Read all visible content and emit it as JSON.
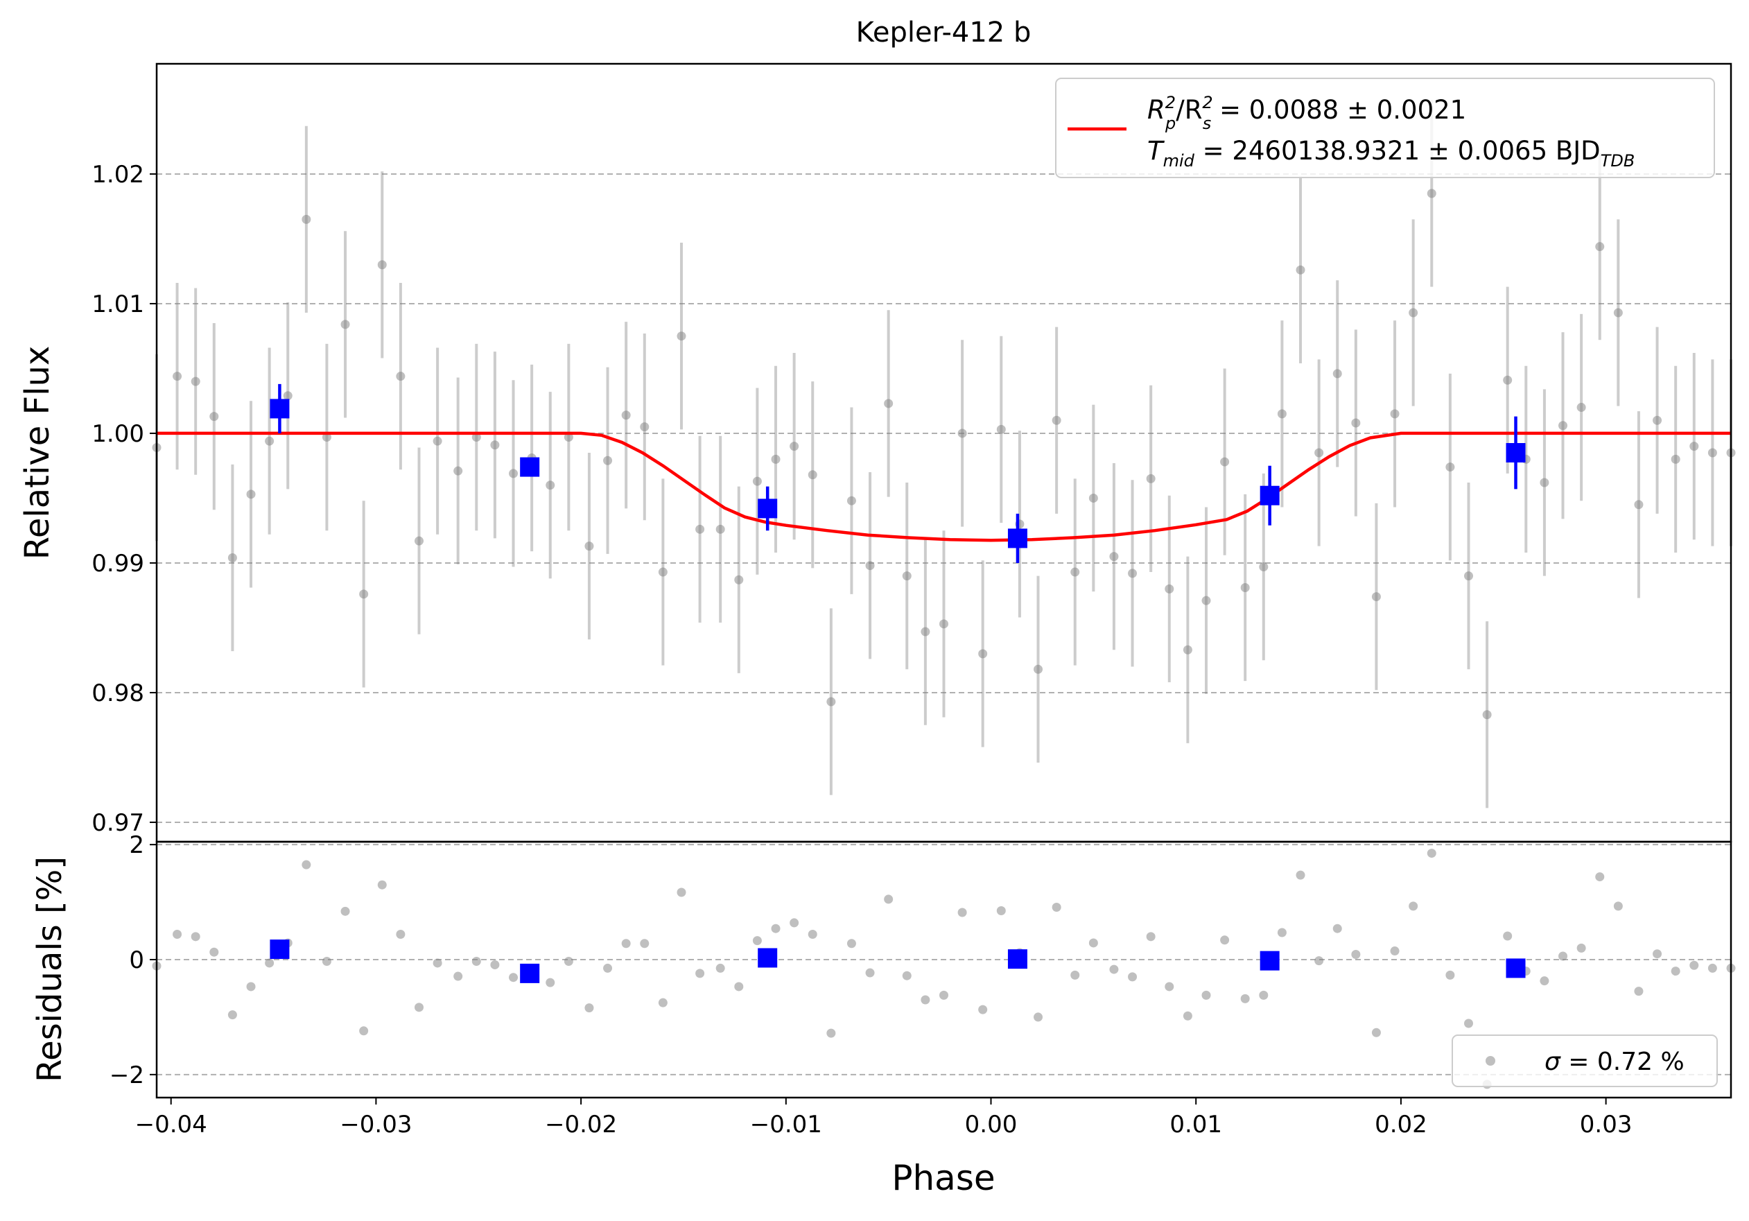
{
  "chart_data": [
    {
      "type": "scatter",
      "panel": "flux",
      "title": "Kepler-412 b",
      "ylabel": "Relative Flux",
      "xlim": [
        -0.0407,
        0.0361
      ],
      "ylim": [
        0.9685,
        1.0285
      ],
      "yticks": [
        0.97,
        0.98,
        0.99,
        1.0,
        1.01,
        1.02
      ],
      "ytick_labels": [
        "0.97",
        "0.98",
        "0.99",
        "1.00",
        "1.01",
        "1.02"
      ],
      "grid": "horizontal dashed",
      "legend_position": "top-right",
      "legend": {
        "line1_base": "R",
        "line1_sub1": "p",
        "line1_sup1": "2",
        "line1_sep": "/R",
        "line1_sub2": "s",
        "line1_sup2": "2",
        "line1_value": " = 0.0088 ± 0.0021",
        "line2_base": "T",
        "line2_sub": "mid",
        "line2_value": " = 2460138.9321 ± 0.0065 BJD",
        "line2_unit_sub": "TDB"
      },
      "model_series": {
        "color": "#ff0000",
        "x": [
          -0.0407,
          -0.02,
          -0.019,
          -0.018,
          -0.017,
          -0.016,
          -0.015,
          -0.014,
          -0.013,
          -0.012,
          -0.011,
          -0.01,
          -0.008,
          -0.006,
          -0.004,
          -0.002,
          0.0,
          0.002,
          0.004,
          0.006,
          0.008,
          0.01,
          0.0115,
          0.0125,
          0.0135,
          0.0145,
          0.0155,
          0.0165,
          0.0175,
          0.0185,
          0.02,
          0.0361
        ],
        "y": [
          1.0,
          1.0,
          0.99985,
          0.9993,
          0.9985,
          0.9975,
          0.9964,
          0.9953,
          0.99425,
          0.99355,
          0.99315,
          0.9929,
          0.9925,
          0.99215,
          0.99195,
          0.9918,
          0.99175,
          0.9918,
          0.99195,
          0.99215,
          0.9925,
          0.99295,
          0.99335,
          0.994,
          0.995,
          0.9961,
          0.9972,
          0.9982,
          0.99905,
          0.99965,
          1.0,
          1.0
        ]
      },
      "data_points": {
        "color": "#808080",
        "x": [
          -0.0407,
          -0.0397,
          -0.0388,
          -0.0379,
          -0.037,
          -0.0361,
          -0.0352,
          -0.0343,
          -0.0334,
          -0.0324,
          -0.0315,
          -0.0306,
          -0.0297,
          -0.0288,
          -0.0279,
          -0.027,
          -0.026,
          -0.0251,
          -0.0242,
          -0.0233,
          -0.0224,
          -0.0215,
          -0.0206,
          -0.0196,
          -0.0187,
          -0.0178,
          -0.0169,
          -0.016,
          -0.0151,
          -0.0142,
          -0.0132,
          -0.0123,
          -0.0114,
          -0.0105,
          -0.0096,
          -0.0087,
          -0.0078,
          -0.0068,
          -0.0059,
          -0.005,
          -0.0041,
          -0.0032,
          -0.0023,
          -0.0014,
          -0.0004,
          0.0005,
          0.0014,
          0.0023,
          0.0032,
          0.0041,
          0.005,
          0.006,
          0.0069,
          0.0078,
          0.0087,
          0.0096,
          0.0105,
          0.0114,
          0.0124,
          0.0133,
          0.0142,
          0.0151,
          0.016,
          0.0169,
          0.0178,
          0.0188,
          0.0197,
          0.0206,
          0.0215,
          0.0224,
          0.0233,
          0.0242,
          0.0252,
          0.0261,
          0.027,
          0.0279,
          0.0288,
          0.0297,
          0.0306,
          0.0316,
          0.0325,
          0.0334,
          0.0343,
          0.0352,
          0.0361
        ],
        "y": [
          0.9989,
          1.0044,
          1.004,
          1.0013,
          0.9904,
          0.9953,
          0.9994,
          1.0029,
          1.0165,
          0.9997,
          1.0084,
          0.9876,
          1.013,
          1.0044,
          0.9917,
          0.9994,
          0.9971,
          0.9997,
          0.9991,
          0.9969,
          0.9981,
          0.996,
          0.9997,
          0.9913,
          0.9979,
          1.0014,
          1.0005,
          0.9893,
          1.0075,
          0.9926,
          0.9926,
          0.9887,
          0.9963,
          0.998,
          0.999,
          0.9968,
          0.9793,
          0.9948,
          0.9898,
          1.0023,
          0.989,
          0.9847,
          0.9853,
          1.0,
          0.983,
          1.0003,
          0.993,
          0.9818,
          1.001,
          0.9893,
          0.995,
          0.9905,
          0.9892,
          0.9965,
          0.988,
          0.9833,
          0.9871,
          0.9978,
          0.9881,
          0.9897,
          1.0015,
          1.0126,
          0.9985,
          1.0046,
          1.0008,
          0.9874,
          1.0015,
          1.0093,
          1.0185,
          0.9974,
          0.989,
          0.9783,
          1.0041,
          0.998,
          0.9962,
          1.0006,
          1.002,
          1.0144,
          1.0093,
          0.9945,
          1.001,
          0.998,
          0.999,
          0.9985,
          0.9985
        ],
        "yerr": 0.0072
      },
      "binned_series": {
        "color": "#0000ff",
        "x": [
          -0.0347,
          -0.0225,
          -0.0109,
          0.0013,
          0.0136,
          0.0256
        ],
        "y": [
          1.0019,
          0.9974,
          0.9942,
          0.9919,
          0.9952,
          0.9985
        ],
        "yerr": [
          0.0019,
          0.0007,
          0.0017,
          0.0019,
          0.0023,
          0.0028
        ]
      }
    },
    {
      "type": "scatter",
      "panel": "residuals",
      "ylabel": "Residuals [%]",
      "xlabel": "Phase",
      "xlim": [
        -0.0407,
        0.0361
      ],
      "ylim": [
        -2.4,
        2.05
      ],
      "yticks": [
        -2,
        0,
        2
      ],
      "ytick_labels": [
        "−2",
        "0",
        "2"
      ],
      "xticks": [
        -0.04,
        -0.03,
        -0.02,
        -0.01,
        0.0,
        0.01,
        0.02,
        0.03
      ],
      "xtick_labels": [
        "−0.04",
        "−0.03",
        "−0.02",
        "−0.01",
        "0.00",
        "0.01",
        "0.02",
        "0.03"
      ],
      "grid": "horizontal dashed",
      "legend_position": "bottom-right",
      "legend": {
        "sigma_symbol": "σ",
        "sigma_value": " = 0.72 %"
      },
      "data_points": {
        "color": "#808080",
        "x": [
          -0.0407,
          -0.0397,
          -0.0388,
          -0.0379,
          -0.037,
          -0.0361,
          -0.0352,
          -0.0343,
          -0.0334,
          -0.0324,
          -0.0315,
          -0.0306,
          -0.0297,
          -0.0288,
          -0.0279,
          -0.027,
          -0.026,
          -0.0251,
          -0.0242,
          -0.0233,
          -0.0224,
          -0.0215,
          -0.0206,
          -0.0196,
          -0.0187,
          -0.0178,
          -0.0169,
          -0.016,
          -0.0151,
          -0.0142,
          -0.0132,
          -0.0123,
          -0.0114,
          -0.0105,
          -0.0096,
          -0.0087,
          -0.0078,
          -0.0068,
          -0.0059,
          -0.005,
          -0.0041,
          -0.0032,
          -0.0023,
          -0.0014,
          -0.0004,
          0.0005,
          0.0014,
          0.0023,
          0.0032,
          0.0041,
          0.005,
          0.006,
          0.0069,
          0.0078,
          0.0087,
          0.0096,
          0.0105,
          0.0114,
          0.0124,
          0.0133,
          0.0142,
          0.0151,
          0.016,
          0.0169,
          0.0178,
          0.0188,
          0.0197,
          0.0206,
          0.0215,
          0.0224,
          0.0233,
          0.0242,
          0.0252,
          0.0261,
          0.027,
          0.0279,
          0.0288,
          0.0297,
          0.0306,
          0.0316,
          0.0325,
          0.0334,
          0.0343,
          0.0352,
          0.0361
        ],
        "y": [
          -0.11,
          0.44,
          0.4,
          0.13,
          -0.96,
          -0.47,
          -0.06,
          0.29,
          1.65,
          -0.03,
          0.84,
          -1.24,
          1.3,
          0.44,
          -0.83,
          -0.06,
          -0.29,
          -0.03,
          -0.09,
          -0.31,
          -0.19,
          -0.4,
          -0.03,
          -0.84,
          -0.15,
          0.28,
          0.28,
          -0.75,
          1.17,
          -0.24,
          -0.15,
          -0.47,
          0.33,
          0.54,
          0.64,
          0.44,
          -1.28,
          0.28,
          -0.23,
          1.05,
          -0.28,
          -0.7,
          -0.62,
          0.82,
          -0.87,
          0.85,
          0.12,
          -1.0,
          0.91,
          -0.27,
          0.29,
          -0.17,
          -0.3,
          0.4,
          -0.47,
          -0.98,
          -0.62,
          0.34,
          -0.68,
          -0.62,
          0.47,
          1.47,
          -0.02,
          0.54,
          0.09,
          -1.27,
          0.15,
          0.93,
          1.85,
          -0.27,
          -1.11,
          -2.17,
          0.41,
          -0.2,
          -0.37,
          0.06,
          0.2,
          1.44,
          0.93,
          -0.55,
          0.1,
          -0.2,
          -0.1,
          -0.15,
          -0.15
        ]
      },
      "binned_series": {
        "color": "#0000ff",
        "x": [
          -0.0347,
          -0.0225,
          -0.0109,
          0.0013,
          0.0136,
          0.0256
        ],
        "y": [
          0.18,
          -0.24,
          0.03,
          0.01,
          -0.02,
          -0.15
        ]
      }
    }
  ]
}
